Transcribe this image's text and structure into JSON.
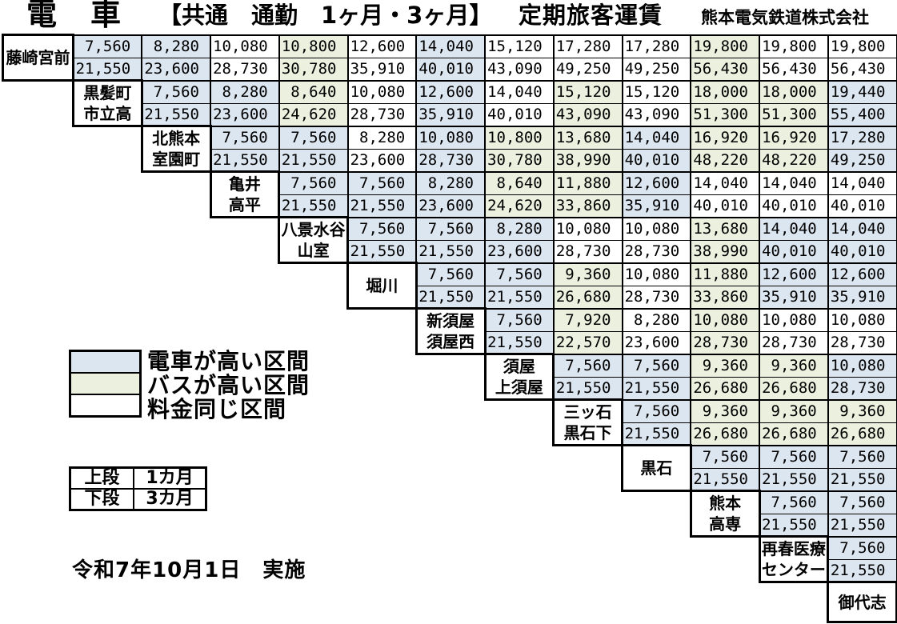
{
  "title": {
    "train": "電　車",
    "scope": "【共通　通勤　1ヶ月・3ヶ月】",
    "heading": "定期旅客運賃",
    "company": "熊本電気鉄道株式会社"
  },
  "colors": {
    "train_higher": "#DCE6F1",
    "bus_higher": "#EBF1DE",
    "same_fare": "#FFFFFF"
  },
  "fare_table": {
    "upper_row_meaning": "1カ月",
    "lower_row_meaning": "3カ月",
    "pairs": [
      {
        "station": [
          "藤崎宮前"
        ],
        "month1": [
          "7,560",
          "8,280",
          "10,080",
          "10,800",
          "12,600",
          "14,040",
          "15,120",
          "17,280",
          "17,280",
          "19,800",
          "19,800",
          "19,800"
        ],
        "month3": [
          "21,550",
          "23,600",
          "28,730",
          "30,780",
          "35,910",
          "40,010",
          "43,090",
          "49,250",
          "49,250",
          "56,430",
          "56,430",
          "56,430"
        ],
        "colors": [
          "train",
          "train",
          "same",
          "bus",
          "same",
          "train",
          "same",
          "same",
          "same",
          "bus",
          "same",
          "same"
        ]
      },
      {
        "station": [
          "黒髪町",
          "市立高"
        ],
        "month1": [
          "7,560",
          "8,280",
          "8,640",
          "10,080",
          "12,600",
          "14,040",
          "15,120",
          "15,120",
          "18,000",
          "18,000",
          "19,440"
        ],
        "month3": [
          "21,550",
          "23,600",
          "24,620",
          "28,730",
          "35,910",
          "40,010",
          "43,090",
          "43,090",
          "51,300",
          "51,300",
          "55,400"
        ],
        "colors": [
          "train",
          "train",
          "bus",
          "same",
          "train",
          "same",
          "bus",
          "same",
          "bus",
          "bus",
          "train"
        ]
      },
      {
        "station": [
          "北熊本",
          "室園町"
        ],
        "month1": [
          "7,560",
          "7,560",
          "8,280",
          "10,080",
          "10,800",
          "13,680",
          "14,040",
          "16,920",
          "16,920",
          "17,280"
        ],
        "month3": [
          "21,550",
          "21,550",
          "23,600",
          "28,730",
          "30,780",
          "38,990",
          "40,010",
          "48,220",
          "48,220",
          "49,250"
        ],
        "colors": [
          "train",
          "train",
          "same",
          "train",
          "bus",
          "bus",
          "train",
          "bus",
          "bus",
          "train"
        ]
      },
      {
        "station": [
          "亀井",
          "高平"
        ],
        "month1": [
          "7,560",
          "7,560",
          "8,280",
          "8,640",
          "11,880",
          "12,600",
          "14,040",
          "14,040",
          "14,040"
        ],
        "month3": [
          "21,550",
          "21,550",
          "23,600",
          "24,620",
          "33,860",
          "35,910",
          "40,010",
          "40,010",
          "40,010"
        ],
        "colors": [
          "train",
          "train",
          "train",
          "bus",
          "bus",
          "train",
          "same",
          "same",
          "same"
        ]
      },
      {
        "station": [
          "八景水谷",
          "山室"
        ],
        "month1": [
          "7,560",
          "7,560",
          "8,280",
          "10,080",
          "10,080",
          "13,680",
          "14,040",
          "14,040"
        ],
        "month3": [
          "21,550",
          "21,550",
          "23,600",
          "28,730",
          "28,730",
          "38,990",
          "40,010",
          "40,010"
        ],
        "colors": [
          "train",
          "train",
          "train",
          "same",
          "same",
          "bus",
          "train",
          "train"
        ]
      },
      {
        "station": [
          "堀川"
        ],
        "month1": [
          "7,560",
          "7,560",
          "9,360",
          "10,080",
          "11,880",
          "12,600",
          "12,600"
        ],
        "month3": [
          "21,550",
          "21,550",
          "26,680",
          "28,730",
          "33,860",
          "35,910",
          "35,910"
        ],
        "colors": [
          "train",
          "train",
          "bus",
          "same",
          "bus",
          "train",
          "train"
        ]
      },
      {
        "station": [
          "新須屋",
          "須屋西"
        ],
        "month1": [
          "7,560",
          "7,920",
          "8,280",
          "10,080",
          "10,080",
          "10,080"
        ],
        "month3": [
          "21,550",
          "22,570",
          "23,600",
          "28,730",
          "28,730",
          "28,730"
        ],
        "colors": [
          "train",
          "bus",
          "same",
          "bus",
          "same",
          "same"
        ]
      },
      {
        "station": [
          "須屋",
          "上須屋"
        ],
        "month1": [
          "7,560",
          "7,560",
          "9,360",
          "9,360",
          "10,080"
        ],
        "month3": [
          "21,550",
          "21,550",
          "26,680",
          "26,680",
          "28,730"
        ],
        "colors": [
          "train",
          "train",
          "bus",
          "bus",
          "train"
        ]
      },
      {
        "station": [
          "三ッ石",
          "黒石下"
        ],
        "month1": [
          "7,560",
          "9,360",
          "9,360",
          "9,360"
        ],
        "month3": [
          "21,550",
          "26,680",
          "26,680",
          "26,680"
        ],
        "colors": [
          "train",
          "bus",
          "bus",
          "bus"
        ]
      },
      {
        "station": [
          "黒石"
        ],
        "month1": [
          "7,560",
          "7,560",
          "7,560"
        ],
        "month3": [
          "21,550",
          "21,550",
          "21,550"
        ],
        "colors": [
          "train",
          "train",
          "train"
        ]
      },
      {
        "station": [
          "熊本",
          "高専"
        ],
        "month1": [
          "7,560",
          "7,560"
        ],
        "month3": [
          "21,550",
          "21,550"
        ],
        "colors": [
          "train",
          "train"
        ]
      },
      {
        "station": [
          "再春医療",
          "センター"
        ],
        "month1": [
          "7,560"
        ],
        "month3": [
          "21,550"
        ],
        "colors": [
          "train"
        ]
      },
      {
        "station": [
          "御代志"
        ]
      }
    ]
  },
  "legend": {
    "items": [
      {
        "label": "電車が高い区間",
        "color": "#DCE6F1"
      },
      {
        "label": "バスが高い区間",
        "color": "#EBF1DE"
      },
      {
        "label": "料金同じ区間",
        "color": "#FFFFFF"
      }
    ]
  },
  "note": {
    "rows": [
      [
        "上段",
        "1カ月"
      ],
      [
        "下段",
        "3カ月"
      ]
    ]
  },
  "effective_date": "令和7年10月1日　実施"
}
